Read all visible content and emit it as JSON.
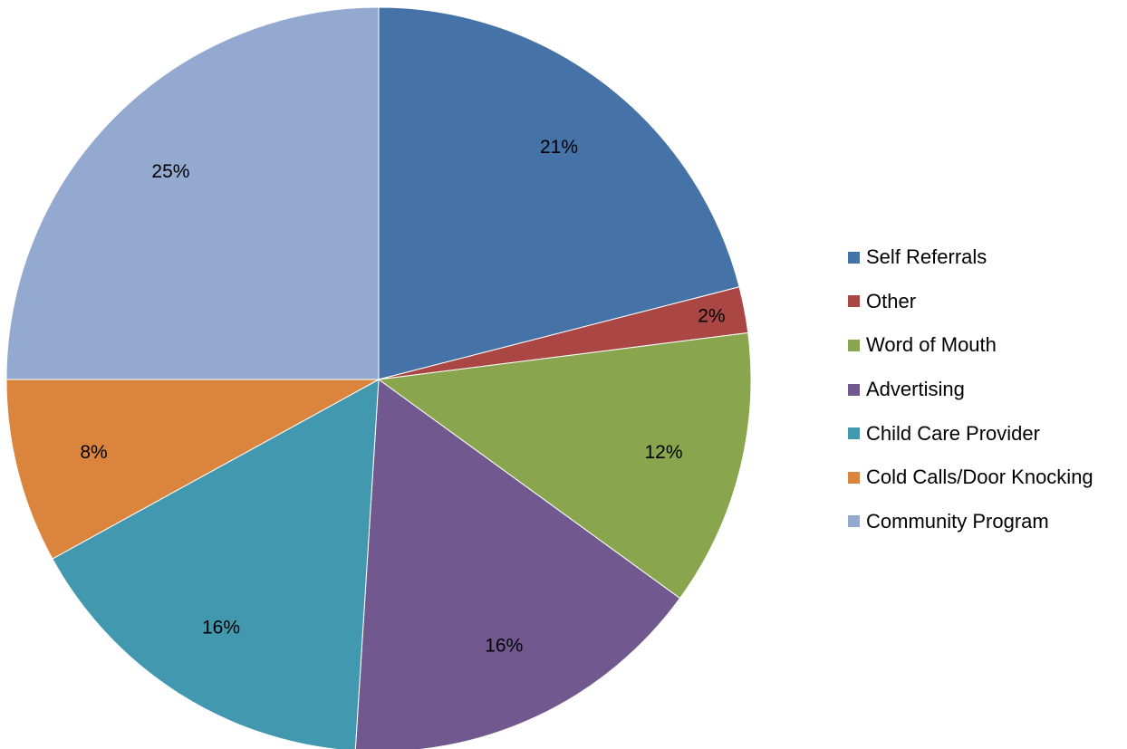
{
  "chart_data": {
    "type": "pie",
    "title": "",
    "slices": [
      {
        "name": "Self Referrals",
        "value": 21,
        "label": "21%",
        "color": "#4572A7"
      },
      {
        "name": "Other",
        "value": 2,
        "label": "2%",
        "color": "#AA4643"
      },
      {
        "name": "Word of Mouth",
        "value": 12,
        "label": "12%",
        "color": "#89A54E"
      },
      {
        "name": "Advertising",
        "value": 16,
        "label": "16%",
        "color": "#71588F"
      },
      {
        "name": "Child Care Provider",
        "value": 16,
        "label": "16%",
        "color": "#4198AF"
      },
      {
        "name": "Cold Calls/Door Knocking",
        "value": 8,
        "label": "8%",
        "color": "#DB843D"
      },
      {
        "name": "Community Program",
        "value": 25,
        "label": "25%",
        "color": "#93A9CF"
      }
    ],
    "start_angle": "12 o'clock",
    "direction": "clockwise",
    "legend_position": "right"
  }
}
